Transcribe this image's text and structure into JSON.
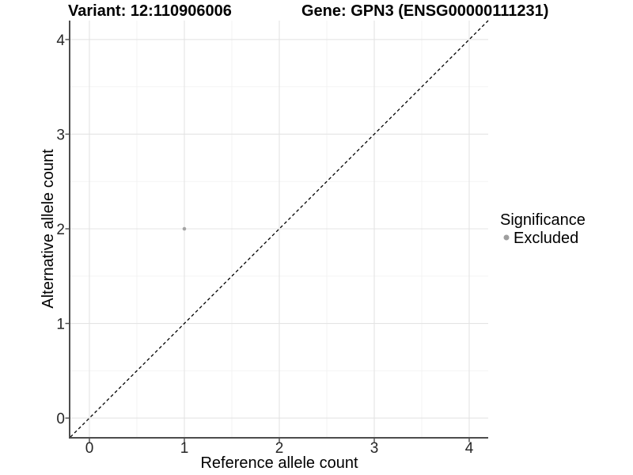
{
  "chart_data": {
    "type": "scatter",
    "title_left": "Variant: 12:110906006",
    "title_right": "Gene: GPN3 (ENSG00000111231)",
    "xlabel": "Reference allele count",
    "ylabel": "Alternative allele count",
    "xlim": [
      -0.2,
      4.2
    ],
    "ylim": [
      -0.2,
      4.2
    ],
    "x_ticks": [
      0,
      1,
      2,
      3,
      4
    ],
    "y_ticks": [
      0,
      1,
      2,
      3,
      4
    ],
    "x_minor_ticks": [
      0.5,
      1.5,
      2.5,
      3.5
    ],
    "y_minor_ticks": [
      0.5,
      1.5,
      2.5,
      3.5
    ],
    "grid": "major and minor, light gray, on white panel",
    "points": [
      {
        "x": 1,
        "y": 2,
        "significance": "Excluded"
      }
    ],
    "identity_line": {
      "slope": 1,
      "intercept": 0,
      "style": "dashed",
      "color": "#000000"
    },
    "legend": {
      "title": "Significance",
      "position": "right",
      "entries": [
        {
          "label": "Excluded",
          "color": "#9e9e9e"
        }
      ]
    },
    "colors": {
      "point": "#a4a4a4",
      "grid_major": "#e4e4e4",
      "grid_minor": "#f2f2f2",
      "axis": "#4d4d4d",
      "tick": "#4d4d4d",
      "dashed_line": "#000000",
      "background": "#ffffff"
    }
  }
}
